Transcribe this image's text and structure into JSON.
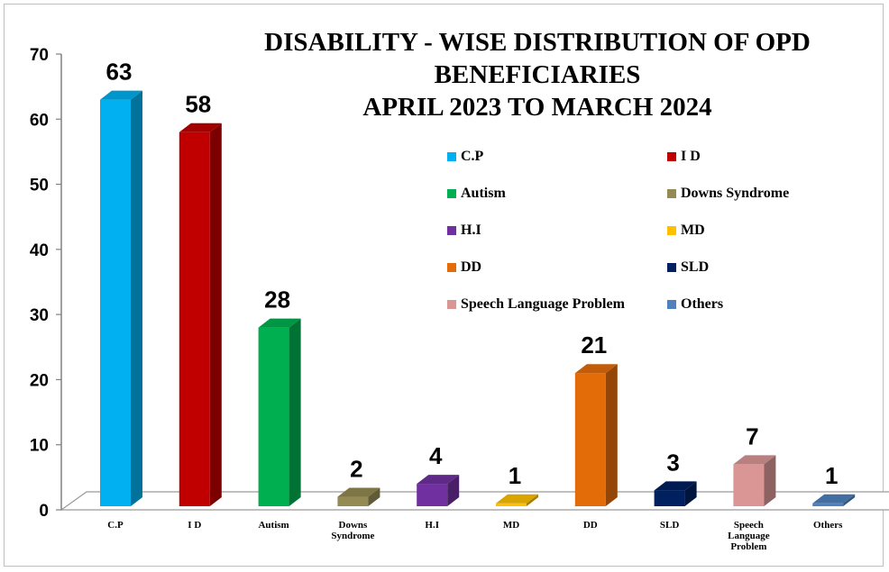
{
  "chart_data": {
    "type": "bar",
    "title": [
      "DISABILITY - WISE DISTRIBUTION OF OPD",
      "BENEFICIARIES",
      "APRIL 2023 TO MARCH 2024"
    ],
    "categories": [
      "C.P",
      "I D",
      "Autism",
      "Downs Syndrome",
      "H.I",
      "MD",
      "DD",
      "SLD",
      "Speech Language Problem",
      "Others"
    ],
    "category_lines": [
      [
        "C.P"
      ],
      [
        "I D"
      ],
      [
        "Autism"
      ],
      [
        "Downs",
        "Syndrome"
      ],
      [
        "H.I"
      ],
      [
        "MD"
      ],
      [
        "DD"
      ],
      [
        "SLD"
      ],
      [
        "Speech",
        "Language",
        "Problem"
      ],
      [
        "Others"
      ]
    ],
    "values": [
      63,
      58,
      28,
      2,
      4,
      1,
      21,
      3,
      7,
      1
    ],
    "colors": [
      "#00b0f0",
      "#c00000",
      "#00b050",
      "#948a54",
      "#7030a0",
      "#ffc000",
      "#e36c09",
      "#002060",
      "#d99694",
      "#4f81bd"
    ],
    "ylim": [
      0,
      70
    ],
    "yticks": [
      0,
      10,
      20,
      30,
      40,
      50,
      60,
      70
    ],
    "legend": {
      "placement": "top-right",
      "entries": [
        "C.P",
        "I D",
        "Autism",
        "Downs Syndrome",
        "H.I",
        "MD",
        "DD",
        "SLD",
        "Speech Language Problem",
        "Others"
      ]
    },
    "grid": false,
    "xlabel": "",
    "ylabel": ""
  }
}
